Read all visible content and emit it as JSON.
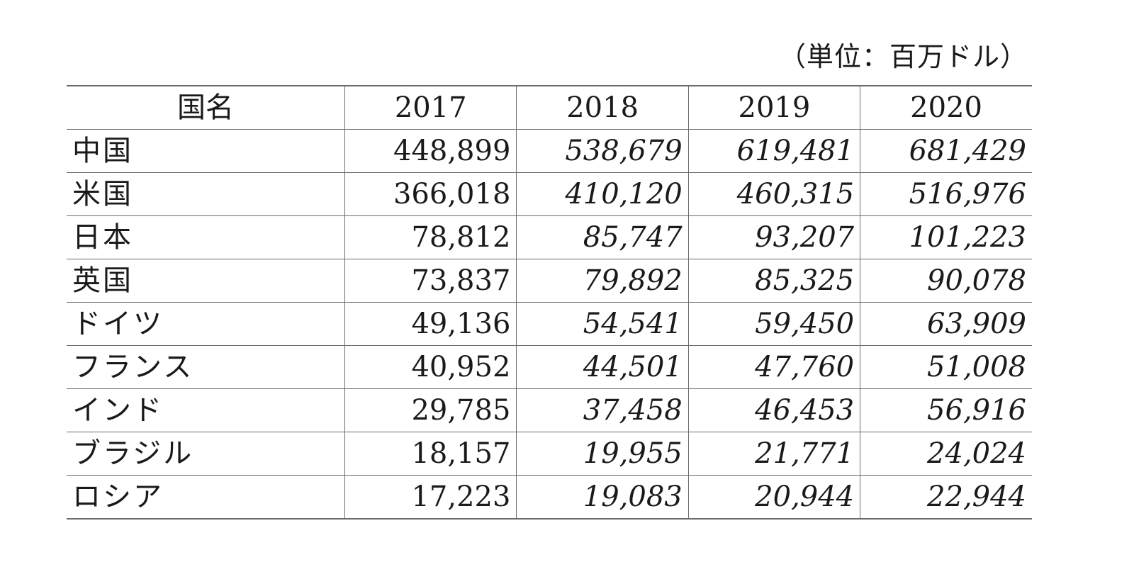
{
  "unit_label": "（単位：百万ドル）",
  "table": {
    "header": {
      "name": "国名",
      "years": [
        "2017",
        "2018",
        "2019",
        "2020"
      ]
    },
    "rows": [
      {
        "name": "中国",
        "values": [
          "448,899",
          "538,679",
          "619,481",
          "681,429"
        ]
      },
      {
        "name": "米国",
        "values": [
          "366,018",
          "410,120",
          "460,315",
          "516,976"
        ]
      },
      {
        "name": "日本",
        "values": [
          "78,812",
          "85,747",
          "93,207",
          "101,223"
        ]
      },
      {
        "name": "英国",
        "values": [
          "73,837",
          "79,892",
          "85,325",
          "90,078"
        ]
      },
      {
        "name": "ドイツ",
        "values": [
          "49,136",
          "54,541",
          "59,450",
          "63,909"
        ]
      },
      {
        "name": "フランス",
        "values": [
          "40,952",
          "44,501",
          "47,760",
          "51,008"
        ]
      },
      {
        "name": "インド",
        "values": [
          "29,785",
          "37,458",
          "46,453",
          "56,916"
        ]
      },
      {
        "name": "ブラジル",
        "values": [
          "18,157",
          "19,955",
          "21,771",
          "24,024"
        ]
      },
      {
        "name": "ロシア",
        "values": [
          "17,223",
          "19,083",
          "20,944",
          "22,944"
        ]
      }
    ]
  }
}
